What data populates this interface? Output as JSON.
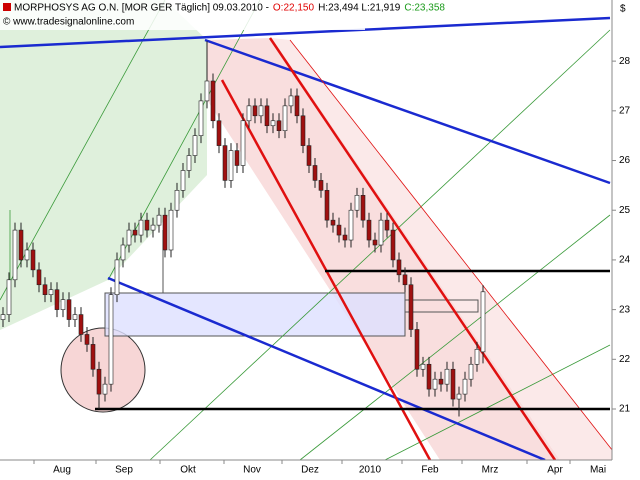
{
  "chart_data": {
    "type": "candlestick",
    "title": "MORPHOSYS AG O.N. [MOR GER  Täglich] 09.03.2010 -",
    "quote_open": "O:22,150",
    "quote_high_low": "H:23,494 L:21,919",
    "quote_close": "C:23,358",
    "source": "© www.tradesignalonline.com",
    "currency": "$",
    "x_labels": [
      "Aug",
      "Sep",
      "Okt",
      "Nov",
      "Dez",
      "2010",
      "Feb",
      "Mrz",
      "Apr",
      "Mai"
    ],
    "ylim": [
      20,
      29.23
    ],
    "yticks": [
      21,
      22,
      23,
      24,
      25,
      26,
      27,
      28
    ],
    "up_color": "#ffffff",
    "down_color": "#a01010",
    "ohlc": [
      [
        22.8,
        23.05,
        22.65,
        22.9
      ],
      [
        22.9,
        23.75,
        22.75,
        23.6
      ],
      [
        23.6,
        24.75,
        23.45,
        24.6
      ],
      [
        24.6,
        24.75,
        23.85,
        24.0
      ],
      [
        24.0,
        24.35,
        23.85,
        24.2
      ],
      [
        24.2,
        24.35,
        23.65,
        23.8
      ],
      [
        23.8,
        23.95,
        23.35,
        23.5
      ],
      [
        23.5,
        23.65,
        23.15,
        23.3
      ],
      [
        23.3,
        23.55,
        23.15,
        23.4
      ],
      [
        23.4,
        23.55,
        22.85,
        23.0
      ],
      [
        23.0,
        23.35,
        22.85,
        23.2
      ],
      [
        23.2,
        23.35,
        22.65,
        22.8
      ],
      [
        22.8,
        23.05,
        22.65,
        22.9
      ],
      [
        22.9,
        23.05,
        22.35,
        22.5
      ],
      [
        22.5,
        22.65,
        22.15,
        22.3
      ],
      [
        22.3,
        22.45,
        21.65,
        21.8
      ],
      [
        21.8,
        21.95,
        21.0,
        21.3
      ],
      [
        21.3,
        21.65,
        21.15,
        21.5
      ],
      [
        21.5,
        23.45,
        21.35,
        23.3
      ],
      [
        23.3,
        24.15,
        23.15,
        24.0
      ],
      [
        24.0,
        24.45,
        23.85,
        24.3
      ],
      [
        24.3,
        24.75,
        24.15,
        24.6
      ],
      [
        24.6,
        24.75,
        24.35,
        24.5
      ],
      [
        24.5,
        24.95,
        24.35,
        24.8
      ],
      [
        24.8,
        24.95,
        24.45,
        24.6
      ],
      [
        24.6,
        24.85,
        24.45,
        24.7
      ],
      [
        24.7,
        25.05,
        24.55,
        24.9
      ],
      [
        24.9,
        25.05,
        24.05,
        24.2
      ],
      [
        24.2,
        25.15,
        24.05,
        25.0
      ],
      [
        25.0,
        25.55,
        24.85,
        25.4
      ],
      [
        25.4,
        25.95,
        25.25,
        25.8
      ],
      [
        25.8,
        26.25,
        25.65,
        26.1
      ],
      [
        26.1,
        26.65,
        25.95,
        26.5
      ],
      [
        26.5,
        27.35,
        26.35,
        27.2
      ],
      [
        27.2,
        28.4,
        27.05,
        27.6
      ],
      [
        27.6,
        27.75,
        26.65,
        26.8
      ],
      [
        26.8,
        26.95,
        26.15,
        26.3
      ],
      [
        26.3,
        26.45,
        25.45,
        25.6
      ],
      [
        25.6,
        26.35,
        25.45,
        26.2
      ],
      [
        26.2,
        26.35,
        25.75,
        25.9
      ],
      [
        25.9,
        26.95,
        25.75,
        26.8
      ],
      [
        26.8,
        27.25,
        26.65,
        27.1
      ],
      [
        27.1,
        27.25,
        26.75,
        26.9
      ],
      [
        26.9,
        27.25,
        26.75,
        27.1
      ],
      [
        27.1,
        27.25,
        26.55,
        26.7
      ],
      [
        26.7,
        26.95,
        26.55,
        26.8
      ],
      [
        26.8,
        26.95,
        26.45,
        26.6
      ],
      [
        26.6,
        27.25,
        26.45,
        27.1
      ],
      [
        27.1,
        27.45,
        26.95,
        27.3
      ],
      [
        27.3,
        27.45,
        26.75,
        26.9
      ],
      [
        26.9,
        27.05,
        26.15,
        26.3
      ],
      [
        26.3,
        26.45,
        25.75,
        25.9
      ],
      [
        25.9,
        26.05,
        25.45,
        25.6
      ],
      [
        25.6,
        25.75,
        25.25,
        25.4
      ],
      [
        25.4,
        25.55,
        24.65,
        24.8
      ],
      [
        24.8,
        24.95,
        24.55,
        24.7
      ],
      [
        24.7,
        24.85,
        24.35,
        24.5
      ],
      [
        24.5,
        24.65,
        24.25,
        24.4
      ],
      [
        24.4,
        25.15,
        24.25,
        25.0
      ],
      [
        25.0,
        25.45,
        24.85,
        25.3
      ],
      [
        25.3,
        25.45,
        24.65,
        24.8
      ],
      [
        24.8,
        24.95,
        24.25,
        24.4
      ],
      [
        24.4,
        24.55,
        24.15,
        24.3
      ],
      [
        24.3,
        24.95,
        24.15,
        24.8
      ],
      [
        24.8,
        24.95,
        24.45,
        24.6
      ],
      [
        24.6,
        24.75,
        23.85,
        24.0
      ],
      [
        24.0,
        24.15,
        23.55,
        23.7
      ],
      [
        23.7,
        23.85,
        23.35,
        23.5
      ],
      [
        23.5,
        23.65,
        22.45,
        22.6
      ],
      [
        22.6,
        22.75,
        21.65,
        21.8
      ],
      [
        21.8,
        22.05,
        21.65,
        21.9
      ],
      [
        21.9,
        22.05,
        21.25,
        21.4
      ],
      [
        21.4,
        21.75,
        21.25,
        21.6
      ],
      [
        21.6,
        21.75,
        21.35,
        21.5
      ],
      [
        21.5,
        21.95,
        21.35,
        21.8
      ],
      [
        21.8,
        21.95,
        21.05,
        21.2
      ],
      [
        21.2,
        21.45,
        20.85,
        21.3
      ],
      [
        21.3,
        21.75,
        21.15,
        21.6
      ],
      [
        21.6,
        22.05,
        21.45,
        21.9
      ],
      [
        21.9,
        22.35,
        21.75,
        22.2
      ],
      [
        22.15,
        23.494,
        21.919,
        23.358
      ]
    ]
  }
}
